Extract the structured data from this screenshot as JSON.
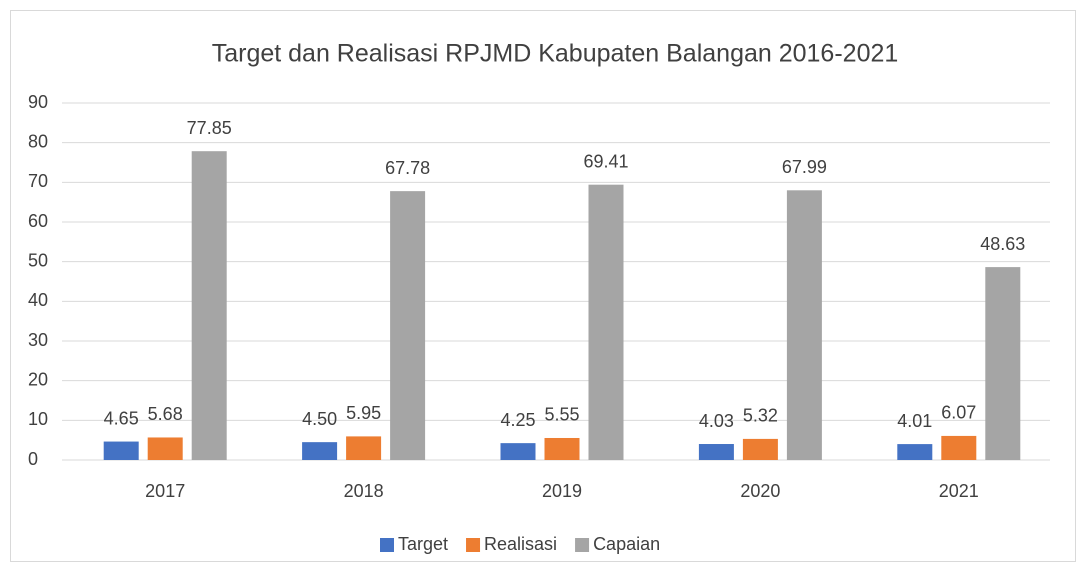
{
  "chart_data": {
    "type": "bar",
    "title": "Target dan Realisasi RPJMD Kabupaten Balangan 2016-2021",
    "categories": [
      "2017",
      "2018",
      "2019",
      "2020",
      "2021"
    ],
    "series": [
      {
        "name": "Target",
        "color": "#4472c4",
        "values": [
          4.65,
          4.5,
          4.25,
          4.03,
          4.01
        ],
        "value_labels": [
          "4.65",
          "4.50",
          "4.25",
          "4.03",
          "4.01"
        ]
      },
      {
        "name": "Realisasi",
        "color": "#ed7d31",
        "values": [
          5.68,
          5.95,
          5.55,
          5.32,
          6.07
        ],
        "value_labels": [
          "5.68",
          "5.95",
          "5.55",
          "5.32",
          "6.07"
        ]
      },
      {
        "name": "Capaian",
        "color": "#a5a5a5",
        "values": [
          77.85,
          67.78,
          69.41,
          67.99,
          48.63
        ],
        "value_labels": [
          "77.85",
          "67.78",
          "69.41",
          "67.99",
          "48.63"
        ]
      }
    ],
    "ylim": [
      0,
      90
    ],
    "yticks": [
      0,
      10,
      20,
      30,
      40,
      50,
      60,
      70,
      80,
      90
    ],
    "grid": true,
    "legend": "bottom"
  }
}
